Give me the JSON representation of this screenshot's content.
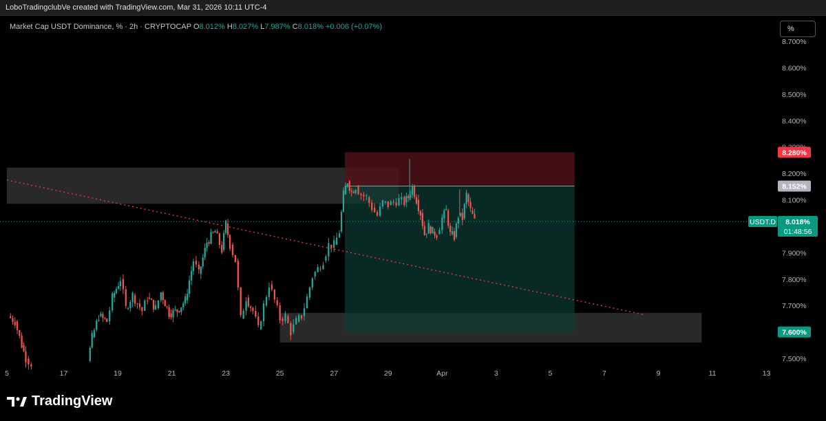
{
  "header": {
    "snapshot_text": "LoboTradingclubVe created with TradingView.com, Mar 31, 2026 10:11 UTC-4"
  },
  "legend": {
    "symbol": "Market Cap USDT Dominance, % · 2h · CRYPTOCAP",
    "o_label": "O",
    "o": "8.012%",
    "h_label": "H",
    "h": "8.027%",
    "l_label": "L",
    "l": "7.987%",
    "c_label": "C",
    "c": "8.018%",
    "change": "+0.006 (+0.07%)"
  },
  "unit_button": "%",
  "footer": {
    "brand": "TradingView"
  },
  "colors": {
    "up": "#26a69a",
    "down": "#ef5350",
    "stop": "#f23645",
    "entry": "#b2b5be",
    "target": "#089981"
  },
  "chart_data": {
    "type": "candlestick",
    "symbol": "USDT.D",
    "ylim": [
      7.48,
      8.715
    ],
    "y_ticks": [
      "7.500%",
      "7.600%",
      "7.700%",
      "7.800%",
      "7.900%",
      "8.000%",
      "8.100%",
      "8.200%",
      "8.300%",
      "8.400%",
      "8.500%",
      "8.600%",
      "8.700%"
    ],
    "x_ticks": [
      "5",
      "17",
      "19",
      "21",
      "23",
      "25",
      "27",
      "29",
      "Apr",
      "3",
      "5",
      "7",
      "9",
      "11",
      "13"
    ],
    "x_tick_dates": [
      14.9,
      17,
      19,
      21,
      23,
      25,
      27,
      29,
      31,
      33,
      35,
      37,
      39,
      41,
      43
    ],
    "xlim": [
      14.9,
      45.2
    ],
    "last_price": {
      "label": "USDT.D",
      "value": "8.018%",
      "countdown": "01:48:56",
      "y": 8.018
    },
    "price_labels": [
      {
        "name": "stop",
        "value": "8.280%",
        "y": 8.28
      },
      {
        "name": "entry",
        "value": "8.152%",
        "y": 8.152
      },
      {
        "name": "target",
        "value": "7.600%",
        "y": 7.6
      }
    ],
    "trendline": {
      "from": [
        14.9,
        8.175
      ],
      "to": [
        38.5,
        7.665
      ]
    },
    "zones": [
      {
        "name": "supply-zone",
        "x0": 14.9,
        "x1": 29.4,
        "y0": 8.085,
        "y1": 8.222
      },
      {
        "name": "demand-zone",
        "x0": 25.0,
        "x1": 40.6,
        "y0": 7.56,
        "y1": 7.672
      }
    ],
    "position": {
      "side": "short",
      "x0": 27.4,
      "x1": 35.9,
      "entry": 8.152,
      "stop": 8.28,
      "target": 7.6
    },
    "candles_anchors": [
      [
        14.95,
        7.66
      ],
      [
        15.2,
        7.64
      ],
      [
        15.45,
        7.55
      ],
      [
        15.6,
        7.5
      ],
      [
        15.8,
        7.48
      ],
      [
        17.9,
        7.49
      ],
      [
        18.05,
        7.58
      ],
      [
        18.3,
        7.66
      ],
      [
        18.6,
        7.64
      ],
      [
        18.8,
        7.73
      ],
      [
        19.1,
        7.8
      ],
      [
        19.3,
        7.69
      ],
      [
        19.55,
        7.74
      ],
      [
        19.9,
        7.68
      ],
      [
        20.1,
        7.73
      ],
      [
        20.4,
        7.69
      ],
      [
        20.6,
        7.75
      ],
      [
        20.9,
        7.67
      ],
      [
        21.2,
        7.68
      ],
      [
        21.5,
        7.72
      ],
      [
        21.8,
        7.87
      ],
      [
        22.0,
        7.82
      ],
      [
        22.3,
        7.94
      ],
      [
        22.6,
        7.98
      ],
      [
        22.85,
        7.91
      ],
      [
        23.0,
        8.01
      ],
      [
        23.15,
        7.93
      ],
      [
        23.35,
        7.87
      ],
      [
        23.55,
        7.65
      ],
      [
        23.75,
        7.73
      ],
      [
        24.0,
        7.68
      ],
      [
        24.2,
        7.61
      ],
      [
        24.4,
        7.7
      ],
      [
        24.6,
        7.78
      ],
      [
        24.8,
        7.72
      ],
      [
        25.0,
        7.65
      ],
      [
        25.2,
        7.66
      ],
      [
        25.4,
        7.6
      ],
      [
        25.6,
        7.64
      ],
      [
        25.8,
        7.66
      ],
      [
        26.0,
        7.73
      ],
      [
        26.2,
        7.81
      ],
      [
        26.4,
        7.84
      ],
      [
        26.6,
        7.87
      ],
      [
        26.8,
        7.93
      ],
      [
        27.0,
        7.93
      ],
      [
        27.2,
        7.98
      ],
      [
        27.35,
        8.12
      ],
      [
        27.5,
        8.17
      ],
      [
        27.65,
        8.13
      ],
      [
        27.8,
        8.15
      ],
      [
        28.0,
        8.12
      ],
      [
        28.2,
        8.11
      ],
      [
        28.4,
        8.07
      ],
      [
        28.6,
        8.04
      ],
      [
        28.8,
        8.09
      ],
      [
        29.0,
        8.08
      ],
      [
        29.2,
        8.09
      ],
      [
        29.4,
        8.1
      ],
      [
        29.6,
        8.09
      ],
      [
        29.75,
        8.11
      ],
      [
        29.9,
        8.15
      ],
      [
        30.05,
        8.1
      ],
      [
        30.2,
        8.05
      ],
      [
        30.35,
        7.97
      ],
      [
        30.5,
        8.0
      ],
      [
        30.65,
        7.98
      ],
      [
        30.8,
        7.97
      ],
      [
        31.0,
        8.03
      ],
      [
        31.15,
        8.06
      ],
      [
        31.3,
        7.97
      ],
      [
        31.45,
        7.96
      ],
      [
        31.6,
        8.04
      ],
      [
        31.75,
        8.03
      ],
      [
        31.9,
        8.12
      ],
      [
        32.05,
        8.06
      ],
      [
        32.2,
        8.02
      ]
    ]
  }
}
